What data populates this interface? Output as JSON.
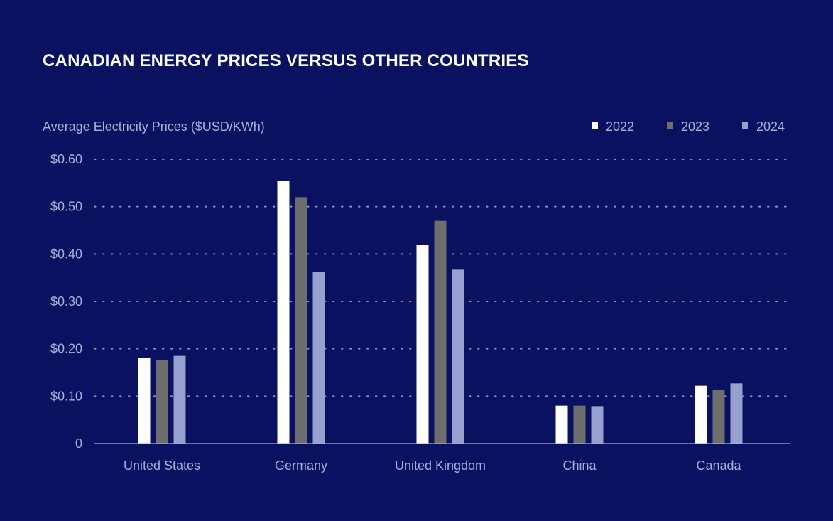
{
  "chart_data": {
    "type": "bar",
    "title": "CANADIAN ENERGY PRICES VERSUS OTHER COUNTRIES",
    "ylabel": "Average Electricity Prices ($USD/KWh)",
    "xlabel": "",
    "categories": [
      "United States",
      "Germany",
      "United Kingdom",
      "China",
      "Canada"
    ],
    "series": [
      {
        "name": "2022",
        "color": "#ffffff",
        "values": [
          0.18,
          0.555,
          0.42,
          0.08,
          0.122
        ]
      },
      {
        "name": "2023",
        "color": "#6e6e6e",
        "values": [
          0.176,
          0.52,
          0.47,
          0.08,
          0.114
        ]
      },
      {
        "name": "2024",
        "color": "#97a0cf",
        "values": [
          0.185,
          0.363,
          0.367,
          0.079,
          0.127
        ]
      }
    ],
    "ylim": [
      0,
      0.6
    ],
    "yticks": [
      0,
      0.1,
      0.2,
      0.3,
      0.4,
      0.5,
      0.6
    ],
    "ytick_labels": [
      "0",
      "$0.10",
      "$0.20",
      "$0.30",
      "$0.40",
      "$0.50",
      "$0.60"
    ],
    "grid": true,
    "legend": "top-right"
  },
  "colors": {
    "background": "#0a1160",
    "text_muted": "#a9afd6",
    "grid": "#8d94c4",
    "axis": "#a9afd6"
  }
}
